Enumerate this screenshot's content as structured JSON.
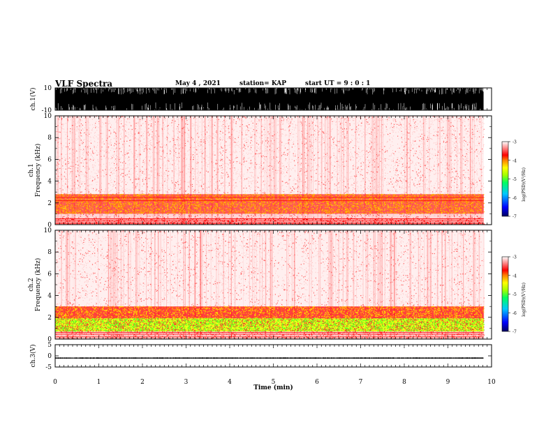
{
  "header": {
    "title": "VLF Spectra",
    "date": "May 4 , 2021",
    "station": "station= KAP",
    "start_ut": "start  UT =   9 : 0  : 1"
  },
  "colors": {
    "colormap": [
      "#000080",
      "#0000ff",
      "#00c0ff",
      "#00ff00",
      "#ffff00",
      "#ff8000",
      "#ff0000",
      "#ff8080",
      "#ffffff"
    ],
    "waveform": "#000000",
    "axis": "#000000"
  },
  "chart_data": [
    {
      "type": "line",
      "panel": "ch1-waveform",
      "ylabel": "ch.1(V)",
      "ylim": [
        -10,
        10
      ],
      "y_ticks": [
        "10",
        "-10"
      ],
      "xlim": [
        0,
        10
      ],
      "x_data_end": 9.82,
      "description": "dense oscillating waveform nearly saturating between -10 and 10 V"
    },
    {
      "type": "heatmap",
      "panel": "ch1-spectrogram",
      "ylabel": "Frequency (kHz)",
      "channel_label": "ch.1",
      "ylim": [
        0,
        10
      ],
      "y_ticks": [
        "0",
        "2",
        "4",
        "6",
        "8",
        "10"
      ],
      "xlim": [
        0,
        10
      ],
      "x_data_end": 9.82,
      "bands": [
        {
          "freq_range": [
            1.0,
            2.8
          ],
          "level": "-4 to -5 (yellow/red)"
        },
        {
          "freq_range": [
            0.0,
            0.6
          ],
          "level": "-4 (red stripes)"
        },
        {
          "freq_range": [
            2.8,
            10.0
          ],
          "level": "-3.5 scattered (light red)"
        }
      ],
      "colorbar": {
        "label": "log(PSD)(V²/Hz)",
        "ticks": [
          "-3",
          "-4",
          "-5",
          "-6",
          "-7"
        ],
        "range": [
          -7,
          -3
        ]
      }
    },
    {
      "type": "heatmap",
      "panel": "ch2-spectrogram",
      "ylabel": "Frequency (kHz)",
      "channel_label": "ch.2",
      "ylim": [
        0,
        10
      ],
      "y_ticks": [
        "0",
        "2",
        "4",
        "6",
        "8",
        "10"
      ],
      "xlim": [
        0,
        10
      ],
      "x_data_end": 9.82,
      "bands": [
        {
          "freq_range": [
            0.7,
            1.9
          ],
          "level": "-5 (green/yellow)"
        },
        {
          "freq_range": [
            1.9,
            3.0
          ],
          "level": "-4 (red/yellow)"
        },
        {
          "freq_range": [
            3.0,
            10.0
          ],
          "level": "-3.5 scattered (light red)"
        }
      ],
      "colorbar": {
        "label": "log(PSD)(V²/Hz)",
        "ticks": [
          "-3",
          "-4",
          "-5",
          "-6",
          "-7"
        ],
        "range": [
          -7,
          -3
        ]
      }
    },
    {
      "type": "line",
      "panel": "ch3-waveform",
      "ylabel": "ch.3(V)",
      "ylim": [
        -5,
        5
      ],
      "y_ticks": [
        "5",
        "0",
        "-5"
      ],
      "xlim": [
        0,
        10
      ],
      "x_data_end": 9.82,
      "description": "narrow band oscillating near -1 V",
      "center": -1.0,
      "amplitude": 0.3
    }
  ],
  "x_axis": {
    "label": "Time (min)",
    "ticks": [
      "0",
      "1",
      "2",
      "3",
      "4",
      "5",
      "6",
      "7",
      "8",
      "9",
      "10"
    ]
  }
}
